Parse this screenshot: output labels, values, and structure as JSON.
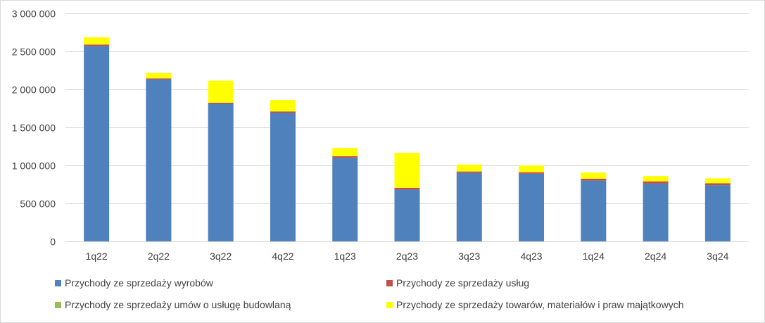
{
  "chart_data": {
    "type": "bar",
    "stacked": true,
    "categories": [
      "1q22",
      "2q22",
      "3q22",
      "4q22",
      "1q23",
      "2q23",
      "3q23",
      "4q23",
      "1q24",
      "2q24",
      "3q24"
    ],
    "series": [
      {
        "name": "Przychody ze sprzedaży wyrobów",
        "color": "#4f81bd",
        "values": [
          2570000,
          2130000,
          1810000,
          1690000,
          1100000,
          680000,
          900000,
          890000,
          800000,
          760000,
          740000
        ]
      },
      {
        "name": "Przychody ze sprzedaży usług",
        "color": "#c0504d",
        "values": [
          20000,
          15000,
          15000,
          20000,
          20000,
          25000,
          20000,
          20000,
          25000,
          30000,
          25000
        ]
      },
      {
        "name": "Przychody ze sprzedaży umów o usługę budowlaną",
        "color": "#9bbb59",
        "values": [
          0,
          0,
          0,
          0,
          0,
          0,
          0,
          0,
          0,
          0,
          0
        ]
      },
      {
        "name": "Przychody ze sprzedaży towarów, materiałów i praw majątkowych",
        "color": "#ffff00",
        "values": [
          95000,
          70000,
          290000,
          150000,
          110000,
          460000,
          90000,
          90000,
          80000,
          70000,
          65000
        ]
      }
    ],
    "ylim": [
      0,
      3000000
    ],
    "yticks": [
      0,
      500000,
      1000000,
      1500000,
      2000000,
      2500000,
      3000000
    ],
    "ytick_labels": [
      "0",
      "500 000",
      "1 000 000",
      "1 500 000",
      "2 000 000",
      "2 500 000",
      "3 000 000"
    ],
    "grid": true,
    "legend_position": "bottom"
  }
}
